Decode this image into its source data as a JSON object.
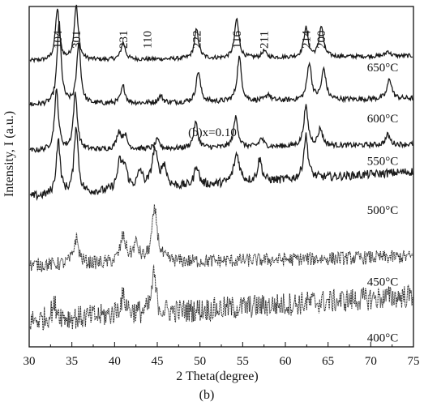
{
  "chart_data": {
    "type": "line",
    "title": "",
    "caption": "(b)",
    "annotation": "(b)x=0.10",
    "xlabel": "2 Theta(degree)",
    "ylabel": "Intensity, I (a.u.)",
    "xlim": [
      30,
      75
    ],
    "x_ticks": [
      30,
      35,
      40,
      45,
      50,
      55,
      60,
      65,
      70,
      75
    ],
    "x_tick_labels": [
      "30",
      "35",
      "40",
      "45",
      "50",
      "55",
      "60",
      "65",
      "70",
      "75"
    ],
    "grid": false,
    "peak_labels": [
      {
        "label": "104",
        "x": 33.3
      },
      {
        "label": "301",
        "x": 35.5
      },
      {
        "label": "231",
        "x": 41.0
      },
      {
        "label": "110",
        "x": 43.8
      },
      {
        "label": "222",
        "x": 49.6
      },
      {
        "label": "116",
        "x": 54.3
      },
      {
        "label": "211",
        "x": 57.5
      },
      {
        "label": "214",
        "x": 62.4
      },
      {
        "label": "200",
        "x": 64.2
      }
    ],
    "series": [
      {
        "name": "650°C",
        "baseline": 0.08,
        "slope": 0.03,
        "noise": 0.012,
        "peaks": [
          [
            33.3,
            0.3,
            0.28
          ],
          [
            35.5,
            0.32,
            0.28
          ],
          [
            41.0,
            0.1,
            0.3
          ],
          [
            49.6,
            0.17,
            0.3
          ],
          [
            54.3,
            0.23,
            0.3
          ],
          [
            57.5,
            0.04,
            0.3
          ],
          [
            62.4,
            0.17,
            0.3
          ],
          [
            64.2,
            0.18,
            0.3
          ],
          [
            72.0,
            0.03,
            0.3
          ]
        ]
      },
      {
        "name": "600°C",
        "baseline": 0.08,
        "slope": 0.04,
        "noise": 0.015,
        "peaks": [
          [
            33.5,
            0.48,
            0.28
          ],
          [
            35.8,
            0.36,
            0.28
          ],
          [
            41.0,
            0.1,
            0.3
          ],
          [
            45.4,
            0.04,
            0.3
          ],
          [
            49.8,
            0.18,
            0.3
          ],
          [
            54.6,
            0.26,
            0.3
          ],
          [
            58.0,
            0.04,
            0.3
          ],
          [
            62.8,
            0.22,
            0.3
          ],
          [
            64.5,
            0.18,
            0.3
          ],
          [
            72.2,
            0.12,
            0.3
          ]
        ]
      },
      {
        "name": "550°C",
        "baseline": 0.05,
        "slope": 0.04,
        "noise": 0.015,
        "peaks": [
          [
            33.2,
            0.35,
            0.28
          ],
          [
            35.4,
            0.33,
            0.28
          ],
          [
            40.5,
            0.1,
            0.3
          ],
          [
            41.2,
            0.08,
            0.3
          ],
          [
            45.0,
            0.05,
            0.3
          ],
          [
            49.5,
            0.15,
            0.3
          ],
          [
            54.2,
            0.18,
            0.3
          ],
          [
            57.2,
            0.05,
            0.3
          ],
          [
            62.4,
            0.23,
            0.3
          ],
          [
            64.1,
            0.1,
            0.3
          ],
          [
            72.0,
            0.06,
            0.3
          ]
        ]
      },
      {
        "name": "500°C",
        "baseline": 0.04,
        "slope": 0.15,
        "noise": 0.025,
        "peaks": [
          [
            33.4,
            0.32,
            0.28
          ],
          [
            35.5,
            0.4,
            0.28
          ],
          [
            40.6,
            0.15,
            0.35
          ],
          [
            41.2,
            0.12,
            0.35
          ],
          [
            43.0,
            0.1,
            0.35
          ],
          [
            44.7,
            0.22,
            0.4
          ],
          [
            45.8,
            0.12,
            0.35
          ],
          [
            49.6,
            0.12,
            0.3
          ],
          [
            54.3,
            0.17,
            0.4
          ],
          [
            57.0,
            0.13,
            0.3
          ],
          [
            62.4,
            0.25,
            0.3
          ]
        ]
      },
      {
        "name": "450°C",
        "baseline": 0.08,
        "slope": 0.05,
        "noise": 0.04,
        "peaks": [
          [
            35.5,
            0.15,
            0.35
          ],
          [
            41.0,
            0.15,
            0.4
          ],
          [
            42.5,
            0.1,
            0.4
          ],
          [
            44.7,
            0.3,
            0.4
          ]
        ]
      },
      {
        "name": "400°C",
        "baseline": 0.05,
        "slope": 0.15,
        "noise": 0.07,
        "peaks": [
          [
            33.0,
            0.08,
            0.5
          ],
          [
            41.0,
            0.1,
            0.5
          ],
          [
            44.6,
            0.22,
            0.3
          ]
        ]
      }
    ],
    "series_offsets": [
      0.8,
      0.67,
      0.55,
      0.42,
      0.2,
      0.05
    ]
  }
}
